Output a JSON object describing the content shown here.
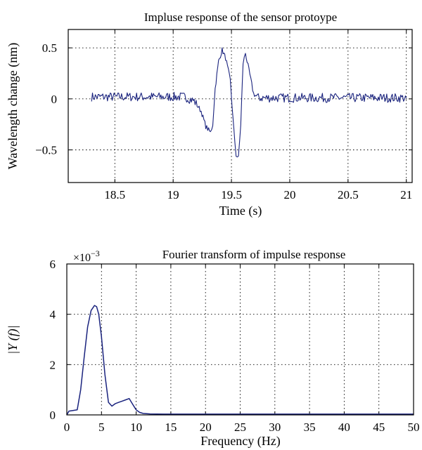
{
  "chart_data": [
    {
      "type": "line",
      "title": "Impluse response of the sensor protoype",
      "xlabel": "Time (s)",
      "ylabel": "Wavelength change (nm)",
      "xlim": [
        18.1,
        21.05
      ],
      "ylim": [
        -0.82,
        0.68
      ],
      "x_ticks": [
        18.5,
        19,
        19.5,
        20,
        20.5,
        21
      ],
      "x_tick_labels": [
        "18.5",
        "19",
        "19.5",
        "20",
        "20.5",
        "21"
      ],
      "y_ticks": [
        0.5,
        0,
        -0.5
      ],
      "y_tick_labels": [
        "0.5",
        "0",
        "−0.5"
      ],
      "grid": true,
      "line_color": "#1a237e",
      "noise_range_x": [
        18.3,
        21.0
      ],
      "series": [
        {
          "x": [
            18.3,
            19.0,
            19.1,
            19.18,
            19.24,
            19.28,
            19.32,
            19.34,
            19.36,
            19.39,
            19.42,
            19.45,
            19.49,
            19.52,
            19.54,
            19.56,
            19.58,
            19.6,
            19.62,
            19.65,
            19.69,
            19.73,
            20.0,
            21.0
          ],
          "y": [
            0.02,
            0.02,
            0.02,
            -0.02,
            -0.12,
            -0.27,
            -0.33,
            -0.25,
            0.1,
            0.37,
            0.48,
            0.4,
            0.18,
            -0.3,
            -0.55,
            -0.58,
            -0.25,
            0.35,
            0.45,
            0.28,
            0.05,
            0.01,
            0.01,
            0.01
          ]
        }
      ]
    },
    {
      "type": "line",
      "title": "Fourier transform of impulse response",
      "exponent_label": "×10",
      "exponent_power": "−3",
      "xlabel": "Frequency (Hz)",
      "ylabel": "|Y (f)|",
      "xlim": [
        0,
        50
      ],
      "ylim": [
        0,
        6
      ],
      "x_ticks": [
        0,
        5,
        10,
        15,
        20,
        25,
        30,
        35,
        40,
        45,
        50
      ],
      "x_tick_labels": [
        "0",
        "5",
        "10",
        "15",
        "20",
        "25",
        "30",
        "35",
        "40",
        "45",
        "50"
      ],
      "y_ticks": [
        0,
        2,
        4,
        6
      ],
      "y_tick_labels": [
        "0",
        "2",
        "4",
        "6"
      ],
      "grid": true,
      "line_color": "#1a237e",
      "series": [
        {
          "x": [
            0,
            0.3,
            0.8,
            1.5,
            2.0,
            2.5,
            3.0,
            3.5,
            4.0,
            4.3,
            4.6,
            5.0,
            5.5,
            6.0,
            6.5,
            7.0,
            7.5,
            8.0,
            8.5,
            9.0,
            9.5,
            10.0,
            10.5,
            11.0,
            12.0,
            14.0,
            20.0,
            30.0,
            40.0,
            50.0
          ],
          "y": [
            0.0,
            0.15,
            0.17,
            0.2,
            1.0,
            2.3,
            3.5,
            4.15,
            4.35,
            4.3,
            4.0,
            3.1,
            1.6,
            0.5,
            0.35,
            0.45,
            0.5,
            0.55,
            0.6,
            0.65,
            0.42,
            0.2,
            0.1,
            0.06,
            0.04,
            0.03,
            0.03,
            0.03,
            0.03,
            0.03
          ]
        }
      ]
    }
  ]
}
